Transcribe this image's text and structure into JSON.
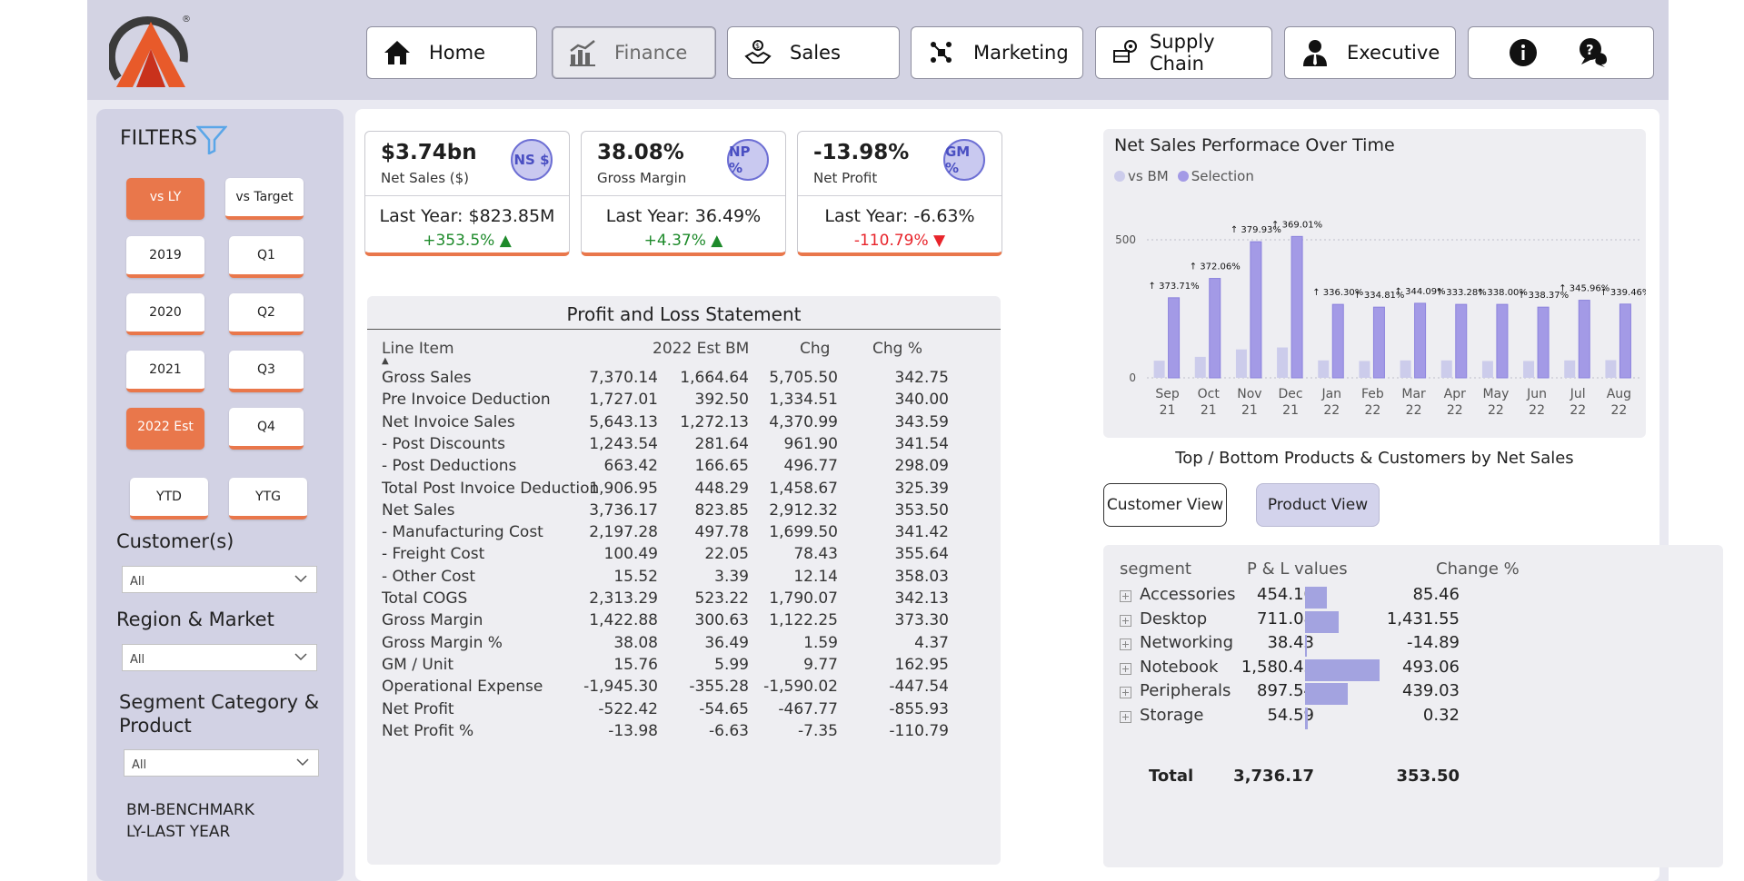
{
  "nav": {
    "items": [
      {
        "label": "Home",
        "icon": "home-icon"
      },
      {
        "label": "Finance",
        "icon": "finance-chart-icon"
      },
      {
        "label": "Sales",
        "icon": "sales-icon"
      },
      {
        "label": "Marketing",
        "icon": "marketing-icon"
      },
      {
        "label": "Supply Chain",
        "icon": "supply-chain-icon"
      },
      {
        "label": "Executive",
        "icon": "executive-icon"
      }
    ],
    "active": "Finance",
    "extra_icons": [
      "info-icon",
      "help-chat-icon"
    ],
    "logo_mark": "®"
  },
  "sidebar": {
    "title": "FILTERS",
    "compare": [
      "vs LY",
      "vs Target"
    ],
    "years": [
      "2019",
      "2020",
      "2021",
      "2022 Est"
    ],
    "quarters": [
      "Q1",
      "Q2",
      "Q3",
      "Q4"
    ],
    "periods": [
      "YTD",
      "YTG"
    ],
    "selected_compare": "vs LY",
    "selected_year": "2022 Est",
    "customer_label": "Customer(s)",
    "customer_value": "All",
    "region_label": "Region & Market",
    "region_value": "All",
    "segment_label_1": "Segment Category &",
    "segment_label_2": "Product",
    "segment_value": "All",
    "note_1": "BM-BENCHMARK",
    "note_2": "LY-LAST YEAR"
  },
  "kpis": [
    {
      "value": "$3.74bn",
      "label": "Net Sales ($)",
      "badge": "NS $",
      "last_year": "Last Year: $823.85M",
      "change": "+353.5%",
      "direction": "up"
    },
    {
      "value": "38.08%",
      "label": "Gross Margin",
      "badge": "NP %",
      "last_year": "Last Year: 36.49%",
      "change": "+4.37%",
      "direction": "up"
    },
    {
      "value": "-13.98%",
      "label": "Net Profit",
      "badge": "GM %",
      "last_year": "Last Year: -6.63%",
      "change": "-110.79%",
      "direction": "down"
    }
  ],
  "pl": {
    "title": "Profit and Loss Statement",
    "headers": [
      "Line Item",
      "2022 Est",
      "BM",
      "Chg",
      "Chg %"
    ],
    "rows": [
      [
        "Gross Sales",
        "7,370.14",
        "1,664.64",
        "5,705.50",
        "342.75"
      ],
      [
        "Pre Invoice Deduction",
        "1,727.01",
        "392.50",
        "1,334.51",
        "340.00"
      ],
      [
        "Net Invoice Sales",
        "5,643.13",
        "1,272.13",
        "4,370.99",
        "343.59"
      ],
      [
        "- Post Discounts",
        "1,243.54",
        "281.64",
        "961.90",
        "341.54"
      ],
      [
        "- Post Deductions",
        "663.42",
        "166.65",
        "496.77",
        "298.09"
      ],
      [
        "Total Post Invoice Deduction",
        "1,906.95",
        "448.29",
        "1,458.67",
        "325.39"
      ],
      [
        "Net Sales",
        "3,736.17",
        "823.85",
        "2,912.32",
        "353.50"
      ],
      [
        "- Manufacturing Cost",
        "2,197.28",
        "497.78",
        "1,699.50",
        "341.42"
      ],
      [
        "- Freight Cost",
        "100.49",
        "22.05",
        "78.43",
        "355.64"
      ],
      [
        "- Other Cost",
        "15.52",
        "3.39",
        "12.14",
        "358.03"
      ],
      [
        "Total COGS",
        "2,313.29",
        "523.22",
        "1,790.07",
        "342.13"
      ],
      [
        "Gross Margin",
        "1,422.88",
        "300.63",
        "1,122.25",
        "373.30"
      ],
      [
        "Gross Margin %",
        "38.08",
        "36.49",
        "1.59",
        "4.37"
      ],
      [
        "GM / Unit",
        "15.76",
        "5.99",
        "9.77",
        "162.95"
      ],
      [
        "Operational Expense",
        "-1,945.30",
        "-355.28",
        "-1,590.02",
        "-447.54"
      ],
      [
        "Net Profit",
        "-522.42",
        "-54.65",
        "-467.77",
        "-855.93"
      ],
      [
        "Net Profit %",
        "-13.98",
        "-6.63",
        "-7.35",
        "-110.79"
      ]
    ]
  },
  "chart_data": {
    "type": "bar",
    "title": "Net Sales Performace Over Time",
    "categories": [
      "Sep 21",
      "Oct 21",
      "Nov 21",
      "Dec 21",
      "Jan 22",
      "Feb 22",
      "Mar 22",
      "Apr 22",
      "May 22",
      "Jun 22",
      "Jul 22",
      "Aug 22"
    ],
    "series": [
      {
        "name": "vs BM",
        "color": "#cccceb",
        "values": [
          62,
          76,
          103,
          110,
          63,
          61,
          63,
          63,
          61,
          61,
          63,
          64
        ]
      },
      {
        "name": "Selection",
        "color": "#a39ae6",
        "values": [
          290,
          360,
          493,
          512,
          266,
          256,
          270,
          266,
          266,
          256,
          281,
          267
        ]
      }
    ],
    "data_labels": [
      "↑ 373.71%",
      "↑ 372.06%",
      "↑ 379.93%",
      "↑ 369.01%",
      "↑ 336.30%",
      "↑ 334.81%",
      "↑ 344.09%",
      "↑ 333.28%",
      "↑ 338.00%",
      "↑ 338.37%",
      "↑ 345.96%",
      "↑ 339.46%"
    ],
    "yticks": [
      "500",
      "0"
    ],
    "ylim": [
      0,
      500
    ],
    "grid": true,
    "legend_position": "top-left"
  },
  "top_bottom": {
    "title": "Top / Bottom Products & Customers by Net Sales",
    "customer_view": "Customer View",
    "product_view": "Product View",
    "headers": [
      "segment",
      "P & L values",
      "Change %"
    ],
    "rows": [
      {
        "segment": "Accessories",
        "value": "454.10",
        "change": "85.46",
        "num": 454.1
      },
      {
        "segment": "Desktop",
        "value": "711.08",
        "change": "1,431.55",
        "num": 711.08
      },
      {
        "segment": "Networking",
        "value": "38.43",
        "change": "-14.89",
        "num": 38.43
      },
      {
        "segment": "Notebook",
        "value": "1,580.43",
        "change": "493.06",
        "num": 1580.43
      },
      {
        "segment": "Peripherals",
        "value": "897.54",
        "change": "439.03",
        "num": 897.54
      },
      {
        "segment": "Storage",
        "value": "54.59",
        "change": "0.32",
        "num": 54.59
      }
    ],
    "total_label": "Total",
    "total_value": "3,736.17",
    "total_change": "353.50"
  },
  "colors": {
    "accent": "#e9774b",
    "badge": "#c9c9f0",
    "bar_selection": "#a39ae6",
    "bar_bm": "#cccceb"
  }
}
